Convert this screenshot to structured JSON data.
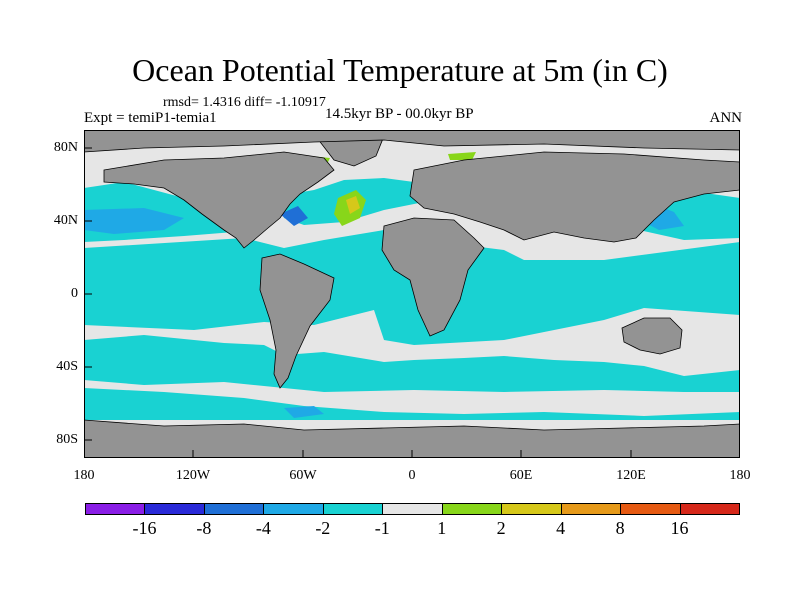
{
  "title": "Ocean Potential Temperature at 5m (in C)",
  "subtitle": "rmsd= 1.4316 diff= -1.10917",
  "left_label": "Expt = temiP1-temia1",
  "center_label": "14.5kyr BP - 00.0kyr BP",
  "right_label": "ANN",
  "y_ticks": [
    "80N",
    "40N",
    "0",
    "40S",
    "80S"
  ],
  "x_ticks": [
    "180",
    "120W",
    "60W",
    "0",
    "60E",
    "120E",
    "180"
  ],
  "colorbar": {
    "labels": [
      "-16",
      "-8",
      "-4",
      "-2",
      "-1",
      "1",
      "2",
      "4",
      "8",
      "16"
    ],
    "colors": [
      "#8a1ee6",
      "#2a2ad8",
      "#1f6fd6",
      "#1fa9e6",
      "#19d2d2",
      "#e6e6e6",
      "#88d61a",
      "#d6c81a",
      "#e69a1a",
      "#e65a12",
      "#d6281a"
    ]
  },
  "colors": {
    "land": "#939393",
    "neutral_ocean": "#e6e6e6",
    "cool_ocean": "#19d2d2",
    "cooler_ocean": "#1fa9e6",
    "cold_ocean": "#1f6fd6",
    "warm_ocean": "#88d61a",
    "warmer_ocean": "#d6c81a"
  }
}
